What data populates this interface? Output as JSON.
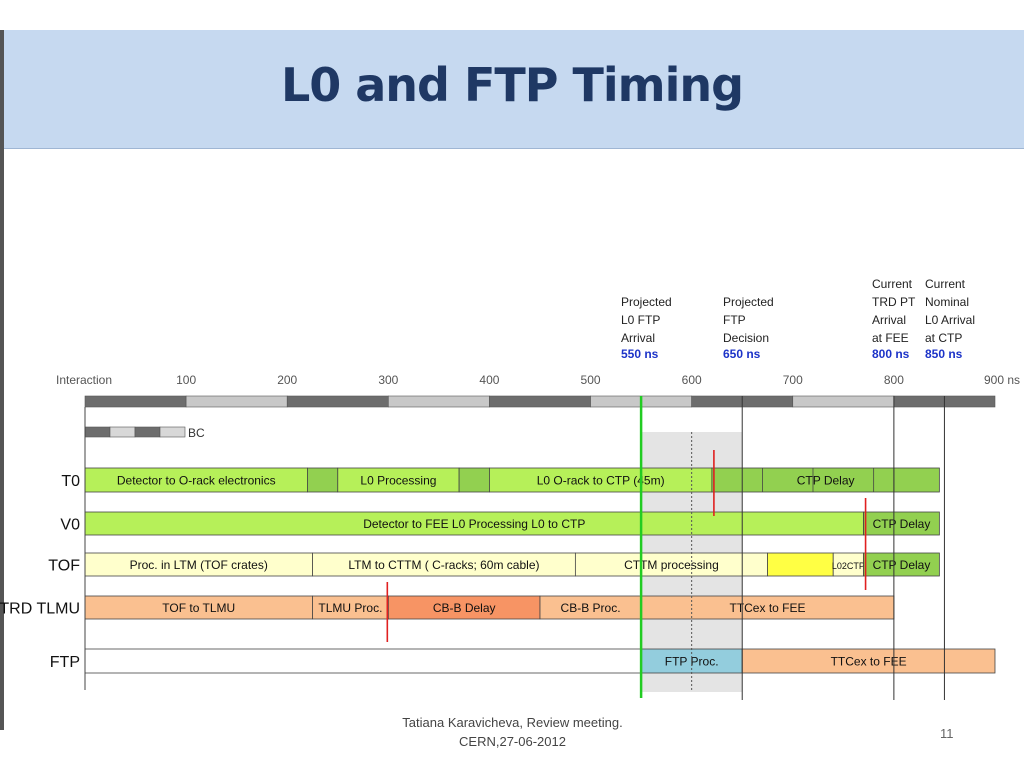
{
  "slide": {
    "title": "L0 and FTP Timing",
    "footer_line1": "Tatiana Karavicheva, Review meeting.",
    "footer_line2": "CERN,27-06-2012",
    "page_number": "11"
  },
  "diagram": {
    "axis": {
      "start_label": "Interaction",
      "unit": "ns",
      "tick_labels": [
        "100",
        "200",
        "300",
        "400",
        "500",
        "600",
        "700",
        "800",
        "900 ns"
      ]
    },
    "bc_label": "BC",
    "markers": [
      {
        "lines": [
          "Projected",
          "L0 FTP",
          "Arrival"
        ],
        "value": "550 ns"
      },
      {
        "lines": [
          "Projected",
          "FTP",
          "Decision"
        ],
        "value": "650 ns"
      },
      {
        "lines": [
          "Current",
          "TRD PT",
          "Arrival",
          "at FEE"
        ],
        "value": "800 ns"
      },
      {
        "lines": [
          "Current",
          "Nominal",
          "L0 Arrival",
          "at CTP"
        ],
        "value": "850 ns"
      }
    ],
    "rows": [
      {
        "label": "T0",
        "segments": [
          {
            "start": 0,
            "end": 220,
            "label": "Detector to O-rack electronics",
            "color": "#b6f059"
          },
          {
            "start": 220,
            "end": 250,
            "label": "",
            "color": "#92d050"
          },
          {
            "start": 250,
            "end": 370,
            "label": "L0 Processing",
            "color": "#b6f059"
          },
          {
            "start": 370,
            "end": 400,
            "label": "",
            "color": "#92d050"
          },
          {
            "start": 400,
            "end": 620,
            "label": "L0 O-rack to CTP  (45m)",
            "color": "#b6f059"
          },
          {
            "start": 620,
            "end": 845,
            "label": "CTP Delay",
            "color": "#92d050"
          }
        ]
      },
      {
        "label": "V0",
        "segments": [
          {
            "start": 0,
            "end": 770,
            "label": "Detector to  FEE                                        L0 Processing                                          L0  to CTP",
            "color": "#b6f059"
          },
          {
            "start": 770,
            "end": 845,
            "label": "CTP Delay",
            "color": "#92d050"
          }
        ]
      },
      {
        "label": "TOF",
        "segments": [
          {
            "start": 0,
            "end": 225,
            "label": "Proc. in LTM (TOF crates)",
            "color": "#ffffcc"
          },
          {
            "start": 225,
            "end": 485,
            "label": "LTM to CTTM ( C-racks; 60m cable)",
            "color": "#ffffcc"
          },
          {
            "start": 485,
            "end": 675,
            "label": "CTTM processing",
            "color": "#ffffcc"
          },
          {
            "start": 675,
            "end": 740,
            "label": "",
            "color": "#ffff44"
          },
          {
            "start": 740,
            "end": 770,
            "label": "L02CTP",
            "color": "#ffffcc"
          },
          {
            "start": 770,
            "end": 845,
            "label": "CTP Delay",
            "color": "#92d050"
          }
        ]
      },
      {
        "label": "TRD TLMU",
        "segments": [
          {
            "start": 0,
            "end": 225,
            "label": "TOF to TLMU",
            "color": "#fac090"
          },
          {
            "start": 225,
            "end": 300,
            "label": "TLMU Proc.",
            "color": "#fac090"
          },
          {
            "start": 300,
            "end": 450,
            "label": "CB-B Delay",
            "color": "#f79464"
          },
          {
            "start": 450,
            "end": 550,
            "label": "CB-B Proc.",
            "color": "#fac090"
          },
          {
            "start": 550,
            "end": 800,
            "label": "TTCex to FEE",
            "color": "#fac090"
          }
        ]
      },
      {
        "label": "FTP",
        "segments": [
          {
            "start": 0,
            "end": 550,
            "label": "",
            "color": "#ffffff"
          },
          {
            "start": 550,
            "end": 650,
            "label": "FTP Proc.",
            "color": "#93cddd"
          },
          {
            "start": 650,
            "end": 900,
            "label": "TTCex to FEE",
            "color": "#fac090"
          }
        ]
      }
    ]
  }
}
